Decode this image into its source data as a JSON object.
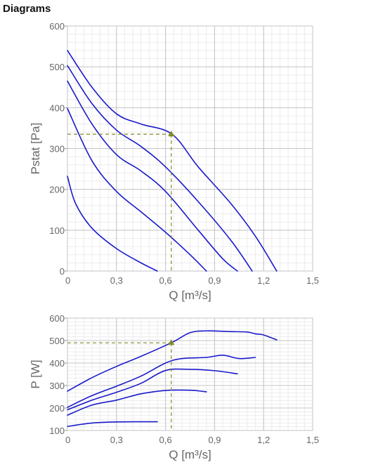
{
  "page": {
    "heading": "Diagrams"
  },
  "colors": {
    "curve": "#1a1acc",
    "guide": "#7f8c2a",
    "grid_major": "#c4c4c4",
    "grid_minor": "#ececec",
    "tick_text": "#666666"
  },
  "chart_data": [
    {
      "type": "line",
      "title": "",
      "xlabel": "Q [m³/s]",
      "ylabel": "Pstat [Pa]",
      "xlim": [
        0,
        1.5
      ],
      "ylim": [
        0,
        600
      ],
      "x_ticks": [
        "0",
        "0,3",
        "0,6",
        "0,9",
        "1,2",
        "1,5"
      ],
      "y_ticks": [
        "0",
        "100",
        "200",
        "300",
        "400",
        "500",
        "600"
      ],
      "grid": true,
      "series": [
        {
          "points": [
            [
              0,
              540
            ],
            [
              0.15,
              450
            ],
            [
              0.3,
              385
            ],
            [
              0.45,
              360
            ],
            [
              0.64,
              335
            ],
            [
              0.8,
              255
            ],
            [
              1.0,
              165
            ],
            [
              1.15,
              85
            ],
            [
              1.28,
              0
            ]
          ]
        },
        {
          "points": [
            [
              0,
              503
            ],
            [
              0.15,
              410
            ],
            [
              0.3,
              345
            ],
            [
              0.45,
              305
            ],
            [
              0.6,
              255
            ],
            [
              0.8,
              170
            ],
            [
              1.0,
              75
            ],
            [
              1.13,
              0
            ]
          ]
        },
        {
          "points": [
            [
              0,
              465
            ],
            [
              0.15,
              360
            ],
            [
              0.3,
              285
            ],
            [
              0.45,
              245
            ],
            [
              0.6,
              195
            ],
            [
              0.8,
              100
            ],
            [
              0.95,
              30
            ],
            [
              1.04,
              0
            ]
          ]
        },
        {
          "points": [
            [
              0,
              398
            ],
            [
              0.15,
              270
            ],
            [
              0.3,
              195
            ],
            [
              0.45,
              145
            ],
            [
              0.6,
              95
            ],
            [
              0.75,
              40
            ],
            [
              0.85,
              0
            ]
          ]
        },
        {
          "points": [
            [
              0,
              232
            ],
            [
              0.05,
              165
            ],
            [
              0.15,
              105
            ],
            [
              0.3,
              55
            ],
            [
              0.45,
              20
            ],
            [
              0.55,
              0
            ]
          ]
        }
      ],
      "operating_point": {
        "x": 0.635,
        "y": 335
      }
    },
    {
      "type": "line",
      "title": "",
      "xlabel": "Q [m³/s]",
      "ylabel": "P [W]",
      "xlim": [
        0,
        1.5
      ],
      "ylim": [
        100,
        600
      ],
      "x_ticks": [
        "0",
        "0,3",
        "0,6",
        "0,9",
        "1,2",
        "1,5"
      ],
      "y_ticks": [
        "100",
        "200",
        "300",
        "400",
        "500",
        "600"
      ],
      "grid": true,
      "series": [
        {
          "points": [
            [
              0,
              275
            ],
            [
              0.15,
              335
            ],
            [
              0.3,
              385
            ],
            [
              0.45,
              430
            ],
            [
              0.64,
              492
            ],
            [
              0.75,
              535
            ],
            [
              0.85,
              543
            ],
            [
              1.0,
              540
            ],
            [
              1.1,
              538
            ],
            [
              1.15,
              530
            ],
            [
              1.2,
              525
            ],
            [
              1.28,
              503
            ]
          ]
        },
        {
          "points": [
            [
              0,
              203
            ],
            [
              0.15,
              255
            ],
            [
              0.3,
              297
            ],
            [
              0.45,
              342
            ],
            [
              0.6,
              400
            ],
            [
              0.7,
              420
            ],
            [
              0.85,
              425
            ],
            [
              0.95,
              435
            ],
            [
              1.05,
              420
            ],
            [
              1.15,
              425
            ]
          ]
        },
        {
          "points": [
            [
              0,
              192
            ],
            [
              0.15,
              235
            ],
            [
              0.3,
              270
            ],
            [
              0.45,
              310
            ],
            [
              0.6,
              367
            ],
            [
              0.75,
              372
            ],
            [
              0.9,
              366
            ],
            [
              1.04,
              352
            ]
          ]
        },
        {
          "points": [
            [
              0,
              168
            ],
            [
              0.15,
              213
            ],
            [
              0.3,
              235
            ],
            [
              0.45,
              263
            ],
            [
              0.6,
              278
            ],
            [
              0.75,
              279
            ],
            [
              0.85,
              272
            ]
          ]
        },
        {
          "points": [
            [
              0,
              118
            ],
            [
              0.15,
              133
            ],
            [
              0.3,
              138
            ],
            [
              0.45,
              139
            ],
            [
              0.55,
              139
            ]
          ]
        }
      ],
      "operating_point": {
        "x": 0.635,
        "y": 490
      }
    }
  ]
}
